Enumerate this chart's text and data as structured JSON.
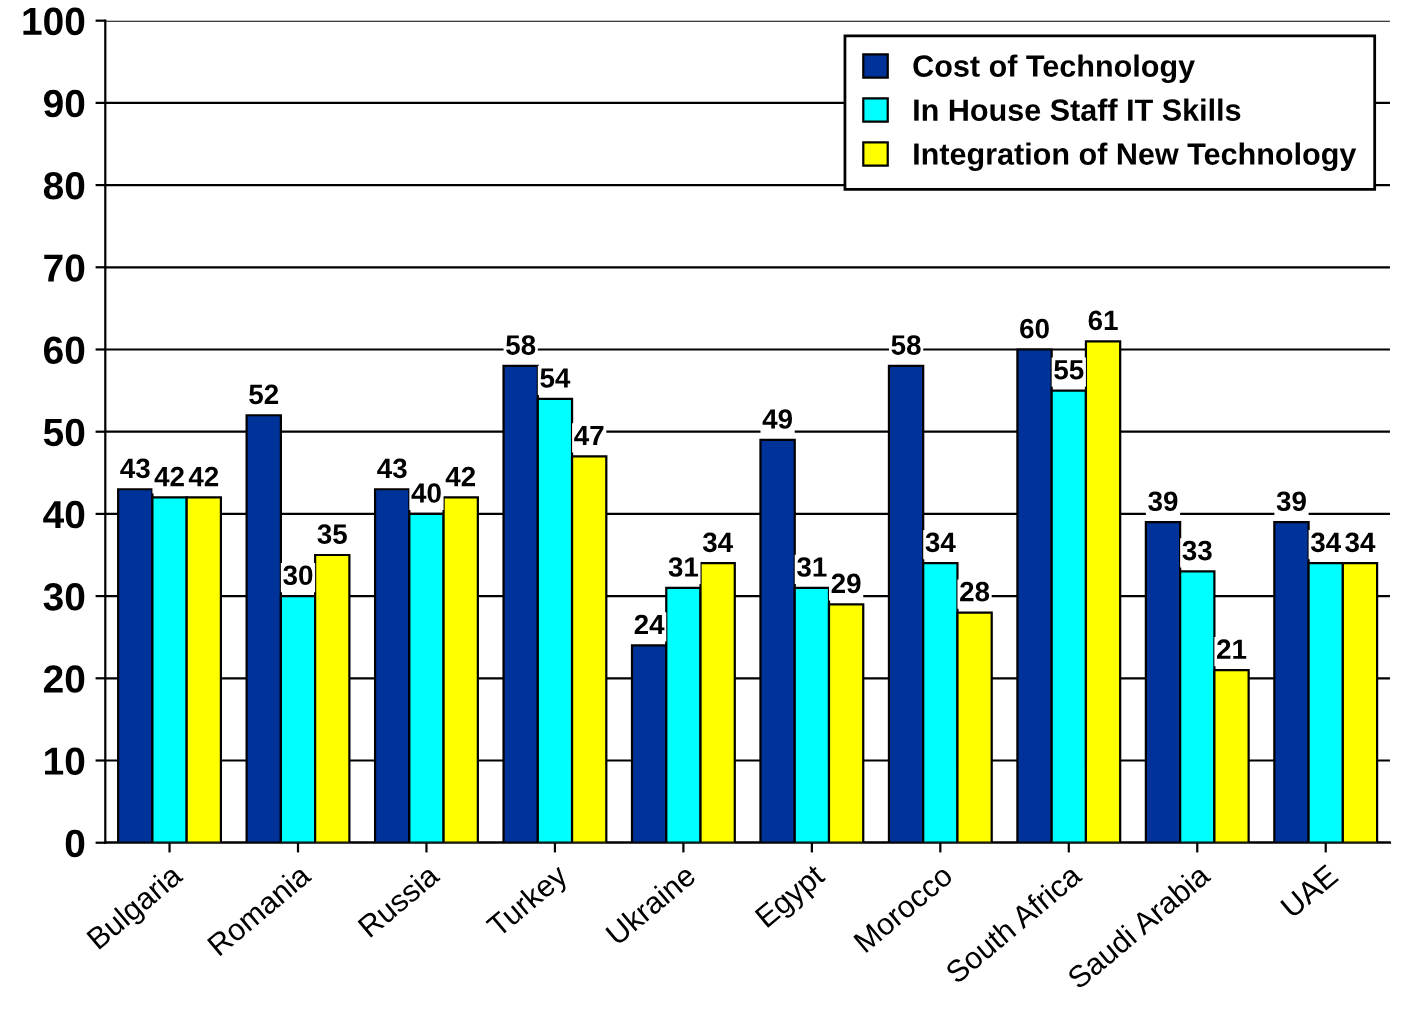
{
  "chart_data": {
    "type": "bar",
    "categories": [
      "Bulgaria",
      "Romania",
      "Russia",
      "Turkey",
      "Ukraine",
      "Egypt",
      "Morocco",
      "South Africa",
      "Saudi Arabia",
      "UAE"
    ],
    "series": [
      {
        "name": "Cost of Technology",
        "color": "#003399",
        "values": [
          43,
          52,
          43,
          58,
          24,
          49,
          58,
          60,
          39,
          39
        ]
      },
      {
        "name": "In House Staff IT Skills",
        "color": "#00ffff",
        "values": [
          42,
          30,
          40,
          54,
          31,
          31,
          34,
          55,
          33,
          34
        ]
      },
      {
        "name": "Integration of New Technology",
        "color": "#ffff00",
        "values": [
          42,
          35,
          42,
          47,
          34,
          29,
          28,
          61,
          21,
          34
        ]
      }
    ],
    "ylim": [
      0,
      100
    ],
    "yticks": [
      0,
      10,
      20,
      30,
      40,
      50,
      60,
      70,
      80,
      90,
      100
    ],
    "grid": "y",
    "legend": "top right",
    "data_labels": true
  }
}
